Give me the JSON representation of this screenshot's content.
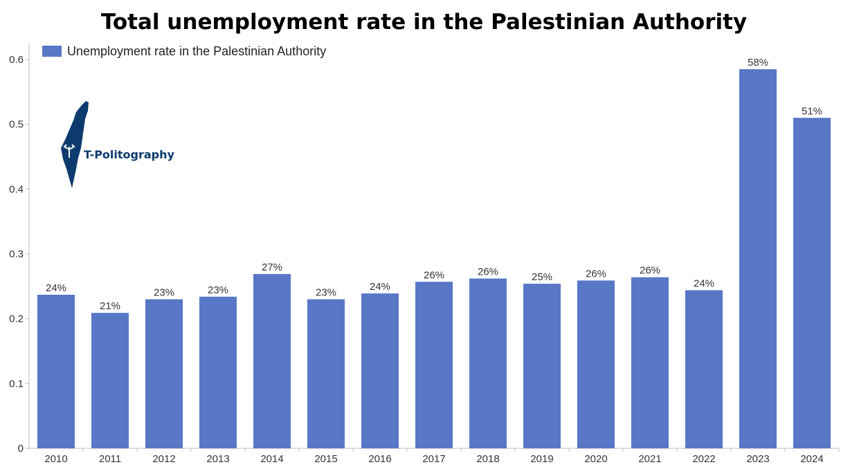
{
  "chart_data": {
    "type": "bar",
    "title": "Total unemployment rate in the Palestinian Authority",
    "xlabel": "",
    "ylabel": "",
    "categories": [
      "2010",
      "2011",
      "2012",
      "2013",
      "2014",
      "2015",
      "2016",
      "2017",
      "2018",
      "2019",
      "2020",
      "2021",
      "2022",
      "2023",
      "2024"
    ],
    "series": [
      {
        "name": "Unemployment rate in the Palestinian Authority",
        "values": [
          0.237,
          0.209,
          0.23,
          0.234,
          0.269,
          0.23,
          0.239,
          0.257,
          0.262,
          0.254,
          0.259,
          0.264,
          0.244,
          0.585,
          0.51
        ],
        "data_labels": [
          "24%",
          "21%",
          "23%",
          "23%",
          "27%",
          "23%",
          "24%",
          "26%",
          "26%",
          "25%",
          "26%",
          "26%",
          "24%",
          "58%",
          "51%"
        ],
        "color": "#5877c6"
      }
    ],
    "ylim": [
      0,
      0.62
    ],
    "yticks": [
      "0",
      "0.1",
      "0.2",
      "0.3",
      "0.4",
      "0.5",
      "0.6"
    ],
    "ytick_values": [
      0,
      0.1,
      0.2,
      0.3,
      0.4,
      0.5,
      0.6
    ],
    "grid": false,
    "legend_position": "top-left"
  },
  "logo": {
    "text": "T-Politography",
    "color": "#0d3b6e"
  }
}
